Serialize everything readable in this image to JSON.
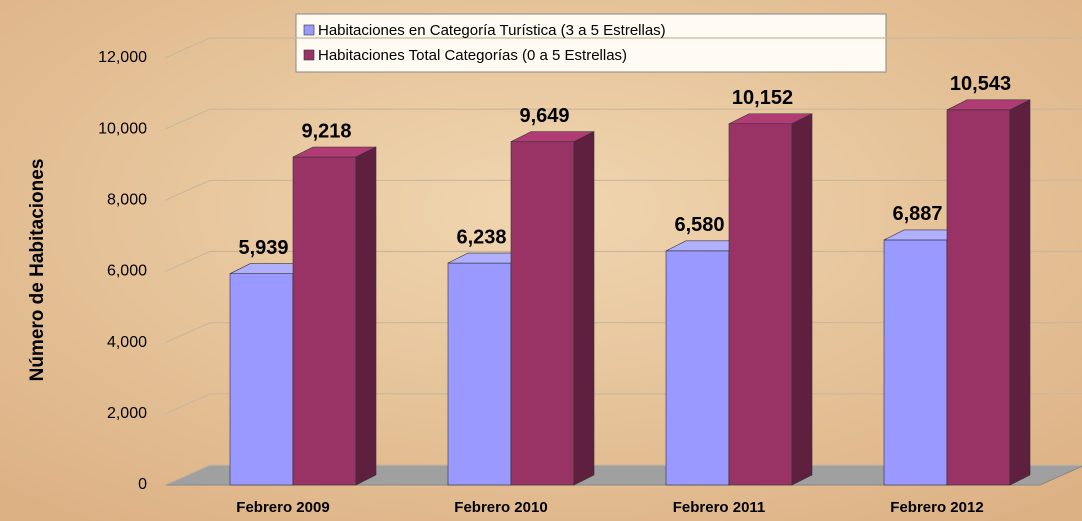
{
  "chart_data": {
    "type": "bar",
    "y_axis_label": "Número de Habitaciones",
    "categories": [
      "Febrero 2009",
      "Febrero 2010",
      "Febrero 2011",
      "Febrero 2012"
    ],
    "series": [
      {
        "name": "Habitaciones en Categoría Turística (3 a 5 Estrellas)",
        "color": "#9999ff",
        "values": [
          5939,
          6238,
          6580,
          6887
        ],
        "value_labels": [
          "5,939",
          "6,238",
          "6,580",
          "6,887"
        ]
      },
      {
        "name": "Habitaciones Total Categorías (0 a 5 Estrellas)",
        "color": "#993366",
        "values": [
          9218,
          9649,
          10152,
          10543
        ],
        "value_labels": [
          "9,218",
          "9,649",
          "10,152",
          "10,543"
        ]
      }
    ],
    "ylim": [
      0,
      12000
    ],
    "yticks": [
      0,
      {
        "value": 2000,
        "label": "2,000"
      },
      {
        "value": 4000,
        "label": "4,000"
      },
      {
        "value": 6000,
        "label": "6,000"
      },
      {
        "value": 8000,
        "label": "8,000"
      },
      {
        "value": 10000,
        "label": "10,000"
      },
      {
        "value": 12000,
        "label": "12,000"
      }
    ],
    "grid": true
  }
}
